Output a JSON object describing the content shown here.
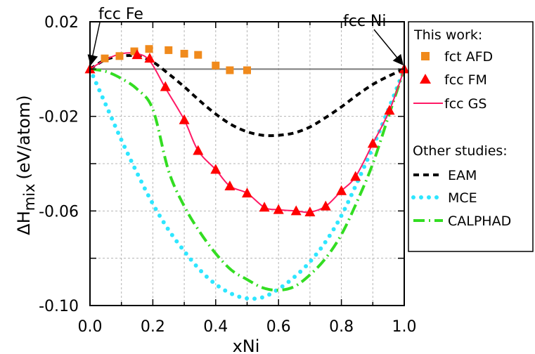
{
  "chart_data": {
    "type": "line",
    "xlabel": "xNi",
    "ylabel_main": "ΔH",
    "ylabel_sub": "mix",
    "ylabel_unit": "(eV/atom)",
    "xlim": [
      0.0,
      1.0
    ],
    "ylim": [
      -0.1,
      0.02
    ],
    "grid": true,
    "x_ticks": [
      0.0,
      0.2,
      0.4,
      0.6,
      0.8,
      1.0
    ],
    "x_tick_labels": [
      "0.0",
      "0.2",
      "0.4",
      "0.6",
      "0.8",
      "1.0"
    ],
    "y_ticks": [
      0.02,
      -0.02,
      -0.06,
      -0.1
    ],
    "y_tick_labels": [
      "0.02",
      "-0.02",
      "-0.06",
      "-0.10"
    ],
    "annotations": [
      {
        "text": "fcc Fe",
        "x": 0.0,
        "y": 0.0
      },
      {
        "text": "fcc Ni",
        "x": 1.0,
        "y": 0.0
      }
    ],
    "legend": {
      "placement": "right",
      "group1_title": "This work:",
      "group2_title": "Other studies:"
    },
    "series": [
      {
        "name": "fct AFD",
        "style": "square",
        "color": "#f08a1c",
        "group": 1,
        "x": [
          0.047,
          0.094,
          0.141,
          0.188,
          0.25,
          0.3,
          0.344,
          0.4,
          0.445,
          0.5
        ],
        "y": [
          0.0045,
          0.0055,
          0.0075,
          0.0085,
          0.008,
          0.0065,
          0.006,
          0.0015,
          -0.0005,
          -0.0005
        ]
      },
      {
        "name": "fcc FM",
        "style": "triangle",
        "color": "#ff0000",
        "group": 1,
        "x": [
          0.0,
          0.15,
          0.19,
          0.24,
          0.3,
          0.344,
          0.4,
          0.445,
          0.5,
          0.555,
          0.6,
          0.656,
          0.7,
          0.75,
          0.8,
          0.845,
          0.9,
          0.953,
          1.0
        ],
        "y": [
          0.0,
          0.006,
          0.0045,
          -0.0075,
          -0.0215,
          -0.0345,
          -0.0425,
          -0.0495,
          -0.0525,
          -0.0585,
          -0.0595,
          -0.06,
          -0.0605,
          -0.058,
          -0.0515,
          -0.0455,
          -0.0315,
          -0.0175,
          0.0
        ]
      },
      {
        "name": "fcc GS",
        "style": "line",
        "color": "#ff1a66",
        "group": 1,
        "x": [
          0.0,
          0.05,
          0.1,
          0.15,
          0.19,
          0.24,
          0.3,
          0.344,
          0.4,
          0.445,
          0.5,
          0.555,
          0.6,
          0.656,
          0.7,
          0.75,
          0.8,
          0.845,
          0.9,
          0.953,
          1.0
        ],
        "y": [
          0.0,
          0.004,
          0.0065,
          0.0065,
          0.0035,
          -0.008,
          -0.0215,
          -0.0345,
          -0.0425,
          -0.0495,
          -0.0525,
          -0.0585,
          -0.0595,
          -0.06,
          -0.0605,
          -0.058,
          -0.0515,
          -0.0455,
          -0.0315,
          -0.0175,
          0.0
        ]
      },
      {
        "name": "EAM",
        "style": "dashed",
        "color": "#000000",
        "group": 2,
        "x": [
          0.0,
          0.05,
          0.1,
          0.15,
          0.2,
          0.25,
          0.3,
          0.35,
          0.4,
          0.45,
          0.5,
          0.55,
          0.6,
          0.65,
          0.7,
          0.75,
          0.8,
          0.85,
          0.9,
          0.95,
          1.0
        ],
        "y": [
          0.0,
          0.004,
          0.0055,
          0.0055,
          0.003,
          -0.002,
          -0.0075,
          -0.0135,
          -0.019,
          -0.0235,
          -0.0265,
          -0.028,
          -0.028,
          -0.027,
          -0.0245,
          -0.0205,
          -0.016,
          -0.011,
          -0.0065,
          -0.003,
          0.0
        ]
      },
      {
        "name": "MCE",
        "style": "dotted",
        "color": "#2ee6ff",
        "group": 2,
        "x": [
          0.0,
          0.05,
          0.1,
          0.15,
          0.2,
          0.25,
          0.3,
          0.35,
          0.4,
          0.45,
          0.5,
          0.55,
          0.6,
          0.65,
          0.7,
          0.75,
          0.8,
          0.85,
          0.9,
          0.95,
          1.0
        ],
        "y": [
          0.0,
          -0.015,
          -0.03,
          -0.044,
          -0.057,
          -0.068,
          -0.077,
          -0.085,
          -0.091,
          -0.095,
          -0.097,
          -0.0965,
          -0.093,
          -0.088,
          -0.0815,
          -0.073,
          -0.062,
          -0.048,
          -0.033,
          -0.017,
          0.0
        ]
      },
      {
        "name": "CALPHAD",
        "style": "dashdot",
        "color": "#33dd22",
        "group": 2,
        "x": [
          0.0,
          0.05,
          0.1,
          0.15,
          0.2,
          0.25,
          0.3,
          0.35,
          0.4,
          0.45,
          0.5,
          0.55,
          0.6,
          0.65,
          0.7,
          0.75,
          0.8,
          0.85,
          0.9,
          0.95,
          1.0
        ],
        "y": [
          0.0,
          -0.001,
          -0.004,
          -0.0085,
          -0.017,
          -0.043,
          -0.058,
          -0.069,
          -0.078,
          -0.085,
          -0.089,
          -0.0925,
          -0.0935,
          -0.092,
          -0.087,
          -0.08,
          -0.07,
          -0.056,
          -0.04,
          -0.02,
          0.0
        ]
      }
    ]
  }
}
